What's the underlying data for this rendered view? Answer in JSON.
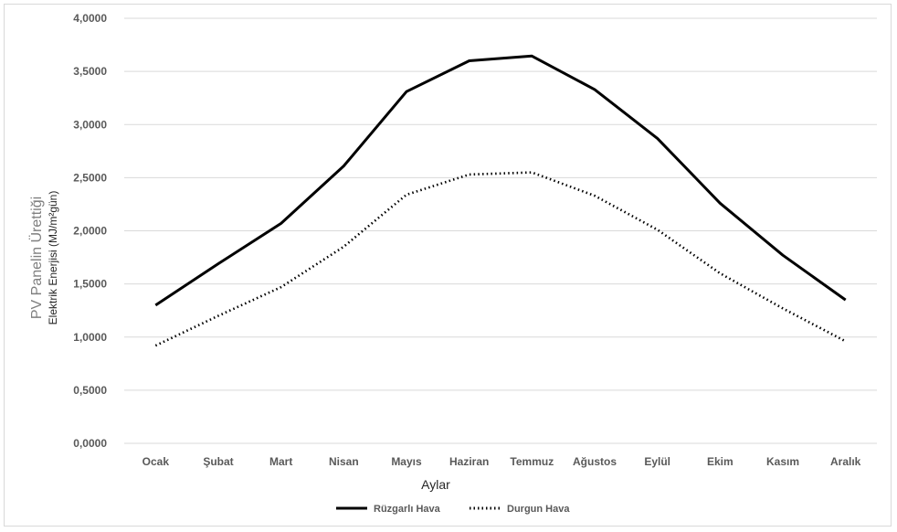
{
  "chart_data": {
    "type": "line",
    "categories": [
      "Ocak",
      "Şubat",
      "Mart",
      "Nisan",
      "Mayıs",
      "Haziran",
      "Temmuz",
      "Ağustos",
      "Eylül",
      "Ekim",
      "Kasım",
      "Aralık"
    ],
    "series": [
      {
        "name": "Rüzgarlı Hava",
        "style": "solid",
        "color": "#000000",
        "values": [
          1.3,
          1.69,
          2.07,
          2.61,
          3.31,
          3.6,
          3.645,
          3.33,
          2.87,
          2.26,
          1.77,
          1.35
        ]
      },
      {
        "name": "Durgun Hava",
        "style": "dotted",
        "color": "#000000",
        "values": [
          0.92,
          1.2,
          1.47,
          1.85,
          2.34,
          2.53,
          2.55,
          2.33,
          2.01,
          1.6,
          1.27,
          0.96
        ]
      }
    ],
    "ylim": [
      0,
      4
    ],
    "yticks": [
      "0,0000",
      "0,5000",
      "1,0000",
      "1,5000",
      "2,0000",
      "2,5000",
      "3,0000",
      "3,5000",
      "4,0000"
    ],
    "xlabel": "Aylar",
    "ylabel_line1": "PV Panelin Ürettiği",
    "ylabel_line2": "Elektrik Enerjisi (MJ/m²gün)",
    "grid": true,
    "legend_position": "bottom"
  }
}
